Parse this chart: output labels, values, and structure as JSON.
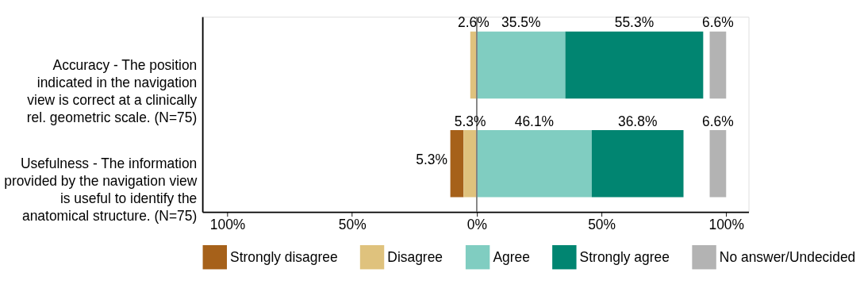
{
  "chart_data": {
    "type": "bar",
    "orientation": "horizontal",
    "categories": [
      "Accuracy - The position indicated in the navigation view is correct at a clinically rel. geometric scale. (N=75)",
      "Usefulness - The information provided by the navigation view is useful to identify the anatomical structure. (N=75)"
    ],
    "series": [
      {
        "name": "Strongly disagree",
        "color": "#a6611a",
        "values": [
          null,
          -5.3
        ],
        "base": [
          null,
          -5.3
        ],
        "value_labels": [
          null,
          "5.3%"
        ]
      },
      {
        "name": "Disagree",
        "color": "#dfc27d",
        "values": [
          -2.6,
          -5.3
        ],
        "base": [
          0,
          0
        ],
        "value_labels": [
          "2.6%",
          "5.3%"
        ]
      },
      {
        "name": "Agree",
        "color": "#80cdc1",
        "values": [
          35.5,
          46.1
        ],
        "base": [
          0,
          0
        ],
        "value_labels": [
          "35.5%",
          "46.1%"
        ]
      },
      {
        "name": "Strongly agree",
        "color": "#018571",
        "values": [
          55.3,
          36.8
        ],
        "base": [
          35.5,
          46.1
        ],
        "value_labels": [
          "55.3%",
          "36.8%"
        ]
      },
      {
        "name": "No answer/Undecided",
        "color": "#b3b3b3",
        "values": [
          6.6,
          6.6
        ],
        "base": [
          93.4,
          93.4
        ],
        "value_labels": [
          "6.6%",
          "6.6%"
        ]
      }
    ],
    "xlim": [
      -110,
      109
    ],
    "xticks": [
      {
        "value": -100,
        "label": "100%"
      },
      {
        "value": -50,
        "label": "50%"
      },
      {
        "value": 0,
        "label": "0%"
      },
      {
        "value": 50,
        "label": "50%"
      },
      {
        "value": 100,
        "label": "100%"
      }
    ],
    "ref_lines": [
      {
        "axis": "x",
        "value": 0,
        "color": "#808080"
      }
    ],
    "grid": false,
    "legend": "bottom"
  }
}
